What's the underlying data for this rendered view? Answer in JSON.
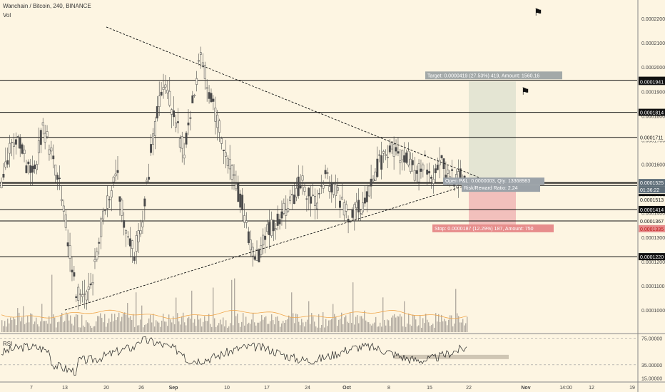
{
  "header": {
    "symbol_title": "Wanchain / Bitcoin, 240, BINANCE",
    "volume_label": "Vol",
    "rsi_label": "RSI"
  },
  "icons": {
    "flag_top": "flag-icon",
    "flag_target": "flag-icon"
  },
  "colors": {
    "background": "#fdf5e2",
    "candle": "#4a4a4a",
    "volume": "#b3aca2",
    "volume_ma": "#f0a64a",
    "target_zone": "#e4e5d3",
    "stop_zone": "#f2c0bc",
    "target_label_bg": "#a3a9a8",
    "stop_label_bg": "#e78d8c",
    "entry_label_bg": "#9ba2a8"
  },
  "chart_data": {
    "type": "candlestick",
    "price_axis": {
      "min": 0.00011,
      "max": 0.00022,
      "ticks": [
        "0.0002200",
        "0.0002100",
        "0.0002000",
        "0.0001900",
        "0.0001800",
        "0.0001700",
        "0.0001600",
        "0.0001500",
        "0.0001400",
        "0.0001300",
        "0.0001200",
        "0.0001100",
        "0.0001000"
      ]
    },
    "time_axis": [
      "7",
      "13",
      "20",
      "26",
      "Sep",
      "10",
      "17",
      "24",
      "Oct",
      "8",
      "15",
      "22",
      "Nov",
      "14:00",
      "12",
      "19"
    ],
    "series_close_path": [
      0.000153,
      0.000165,
      0.00017,
      0.00016,
      0.000157,
      0.000175,
      0.000165,
      0.000153,
      0.00013,
      0.000108,
      0.000106,
      0.000114,
      0.000134,
      0.000148,
      0.000154,
      0.00013,
      0.000124,
      0.000135,
      0.000165,
      0.000185,
      0.000192,
      0.000177,
      0.000165,
      0.000185,
      0.000205,
      0.00019,
      0.000177,
      0.000165,
      0.000153,
      0.000144,
      0.000127,
      0.000122,
      0.000132,
      0.000137,
      0.000141,
      0.000145,
      0.000153,
      0.000147,
      0.000143,
      0.000155,
      0.00015,
      0.000143,
      0.000139,
      0.000142,
      0.000145,
      0.000157,
      0.000163,
      0.000167,
      0.000164,
      0.000162,
      0.000155,
      0.00016,
      0.000155,
      0.000161,
      0.000155,
      0.000155,
      0.000153
    ],
    "horizontal_levels": [
      "0.0001946",
      "0.0001814",
      "0.0001711",
      "0.0001525",
      "0.0001522",
      "0.0001513",
      "0.0001414",
      "0.0001367",
      "0.0001220"
    ],
    "price_badges": [
      {
        "label": "0.0001946",
        "kind": "level"
      },
      {
        "label": "0.0001941",
        "kind": "level"
      },
      {
        "label": "0.0001814",
        "kind": "level"
      },
      {
        "label": "0.0001711",
        "kind": "plain"
      },
      {
        "label": "0.0001525",
        "kind": "current"
      },
      {
        "label": "01:36:22",
        "kind": "timer"
      },
      {
        "label": "0.0001522",
        "kind": "level"
      },
      {
        "label": "0.0001513",
        "kind": "plain"
      },
      {
        "label": "0.0001414",
        "kind": "level"
      },
      {
        "label": "0.0001367",
        "kind": "plain"
      },
      {
        "label": "0.0001335",
        "kind": "stop"
      },
      {
        "label": "0.0001220",
        "kind": "level"
      }
    ],
    "trendlines": [
      {
        "from": {
          "time": "20",
          "price": 0.0002165
        },
        "to": {
          "time": "22",
          "price": 0.0001525
        }
      },
      {
        "from": {
          "time": "13",
          "price": 0.0001
        },
        "to": {
          "time": "22",
          "price": 0.0001525
        }
      }
    ],
    "trade": {
      "entry": 0.0001522,
      "target": 0.0001941,
      "stop": 0.0001335,
      "target_label": "Target: 0.0000419 (27.53%) 419, Amount: 1560.16",
      "entry_label": "Open P&L: 0.0000003, Qty: 13368983",
      "ratio_label": "Risk/Reward Ratio: 2.24",
      "stop_label": "Stop: 0.0000187 (12.29%) 187, Amount: 750"
    },
    "rsi": {
      "ticks": [
        "75.00000",
        "35.00000",
        "15.00000"
      ]
    }
  }
}
